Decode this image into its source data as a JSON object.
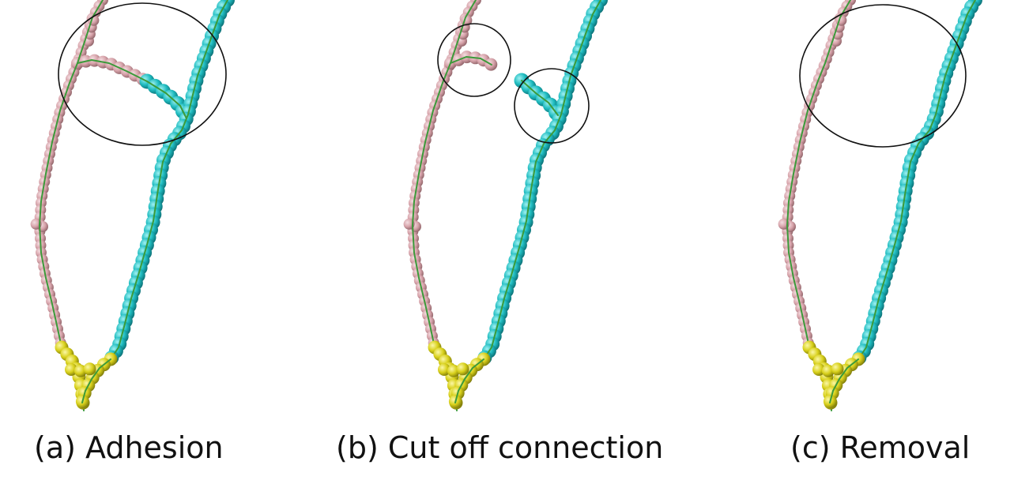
{
  "panels": [
    {
      "id": "a",
      "caption": "(a) Adhesion"
    },
    {
      "id": "b",
      "caption": "(b) Cut off connection"
    },
    {
      "id": "c",
      "caption": "(c) Removal"
    }
  ],
  "colors": {
    "pink_bead": "#d7a3aa",
    "cyan_bead": "#1fbcc0",
    "yellow_bead": "#d8d01a",
    "centerline": "#3c9a3a",
    "highlight_circle": "#111111"
  }
}
